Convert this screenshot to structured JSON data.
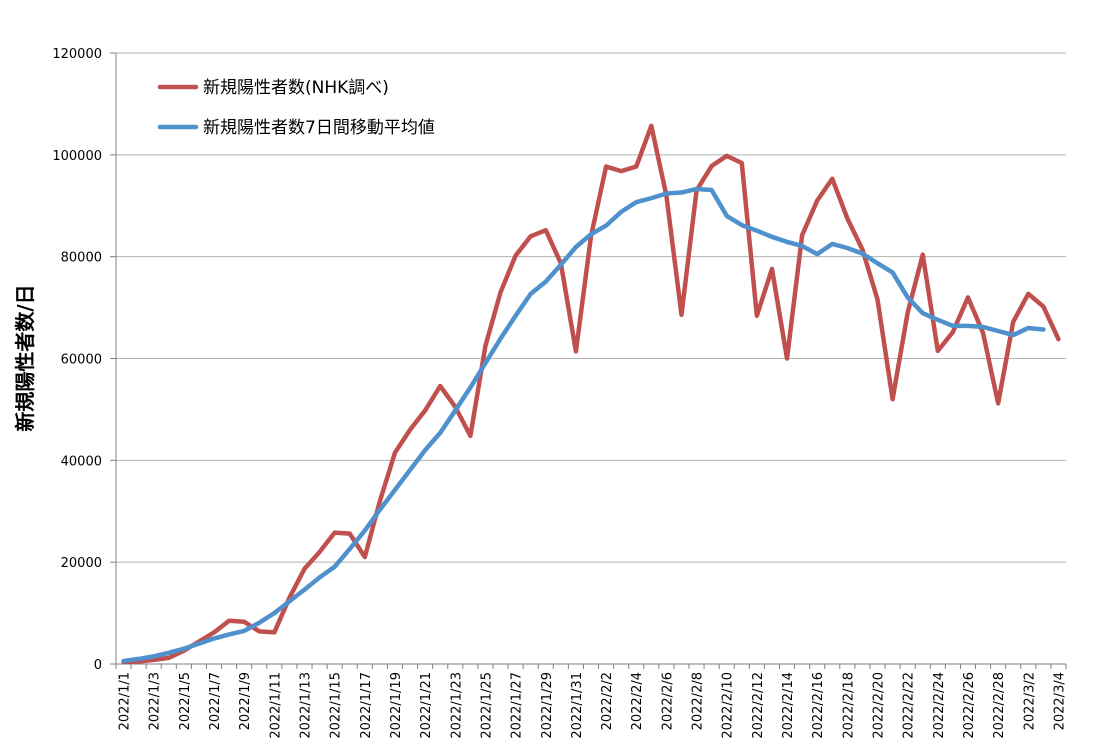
{
  "chart_data": {
    "type": "line",
    "ylabel": "新規陽性者数/日",
    "xlabel": "",
    "ylim": [
      0,
      120000
    ],
    "yticks": [
      "0",
      "20000",
      "40000",
      "60000",
      "80000",
      "100000",
      "120000"
    ],
    "grid": "horizontal",
    "legend_position": "top-left",
    "x": [
      "2022/1/1",
      "2022/1/2",
      "2022/1/3",
      "2022/1/4",
      "2022/1/5",
      "2022/1/6",
      "2022/1/7",
      "2022/1/8",
      "2022/1/9",
      "2022/1/10",
      "2022/1/11",
      "2022/1/12",
      "2022/1/13",
      "2022/1/14",
      "2022/1/15",
      "2022/1/16",
      "2022/1/17",
      "2022/1/18",
      "2022/1/19",
      "2022/1/20",
      "2022/1/21",
      "2022/1/22",
      "2022/1/23",
      "2022/1/24",
      "2022/1/25",
      "2022/1/26",
      "2022/1/27",
      "2022/1/28",
      "2022/1/29",
      "2022/1/30",
      "2022/1/31",
      "2022/2/1",
      "2022/2/2",
      "2022/2/3",
      "2022/2/4",
      "2022/2/5",
      "2022/2/6",
      "2022/2/7",
      "2022/2/8",
      "2022/2/9",
      "2022/2/10",
      "2022/2/11",
      "2022/2/12",
      "2022/2/13",
      "2022/2/14",
      "2022/2/15",
      "2022/2/16",
      "2022/2/17",
      "2022/2/18",
      "2022/2/19",
      "2022/2/20",
      "2022/2/21",
      "2022/2/22",
      "2022/2/23",
      "2022/2/24",
      "2022/2/25",
      "2022/2/26",
      "2022/2/27",
      "2022/2/28",
      "2022/3/1",
      "2022/3/2",
      "2022/3/3",
      "2022/3/4"
    ],
    "xtick_labels": [
      "2022/1/1",
      "2022/1/3",
      "2022/1/5",
      "2022/1/7",
      "2022/1/9",
      "2022/1/11",
      "2022/1/13",
      "2022/1/15",
      "2022/1/17",
      "2022/1/19",
      "2022/1/21",
      "2022/1/23",
      "2022/1/25",
      "2022/1/27",
      "2022/1/29",
      "2022/1/31",
      "2022/2/2",
      "2022/2/4",
      "2022/2/6",
      "2022/2/8",
      "2022/2/10",
      "2022/2/12",
      "2022/2/14",
      "2022/2/16",
      "2022/2/18",
      "2022/2/20",
      "2022/2/22",
      "2022/2/24",
      "2022/2/26",
      "2022/2/28",
      "2022/3/2",
      "2022/3/4"
    ],
    "series": [
      {
        "name": "新規陽性者数(NHK調べ)",
        "color": "#c0504d",
        "values": [
          400,
          500,
          800,
          1200,
          2600,
          4400,
          6200,
          8500,
          8300,
          6400,
          6200,
          13000,
          18700,
          22000,
          25800,
          25600,
          21000,
          32000,
          41500,
          46000,
          49800,
          54600,
          50500,
          44800,
          62500,
          73000,
          80200,
          84000,
          85200,
          78700,
          61400,
          84000,
          97700,
          96800,
          97700,
          105700,
          92000,
          68600,
          93000,
          97800,
          99800,
          98400,
          68400,
          77600,
          60000,
          84200,
          91000,
          95300,
          87500,
          81400,
          71600,
          52000,
          69000,
          80400,
          61500,
          65200,
          72000,
          65000,
          51200,
          67200,
          72700,
          70200,
          63800
        ]
      },
      {
        "name": "新規陽性者数7日間移動平均値",
        "color": "#4f91cd",
        "values": [
          600,
          1000,
          1500,
          2200,
          3000,
          4000,
          5000,
          5800,
          6500,
          8100,
          10000,
          12300,
          14600,
          17000,
          19100,
          22600,
          26200,
          30300,
          34200,
          38100,
          42000,
          45400,
          49800,
          54300,
          59100,
          63900,
          68400,
          72700,
          75100,
          78400,
          81900,
          84400,
          86100,
          88800,
          90700,
          91500,
          92400,
          92600,
          93300,
          93100,
          88000,
          86200,
          85100,
          83900,
          82900,
          82100,
          80500,
          82500,
          81700,
          80600,
          78700,
          76900,
          72000,
          68900,
          67600,
          66400,
          66400,
          66200,
          65400,
          64600,
          66000,
          65700,
          null
        ]
      }
    ]
  }
}
